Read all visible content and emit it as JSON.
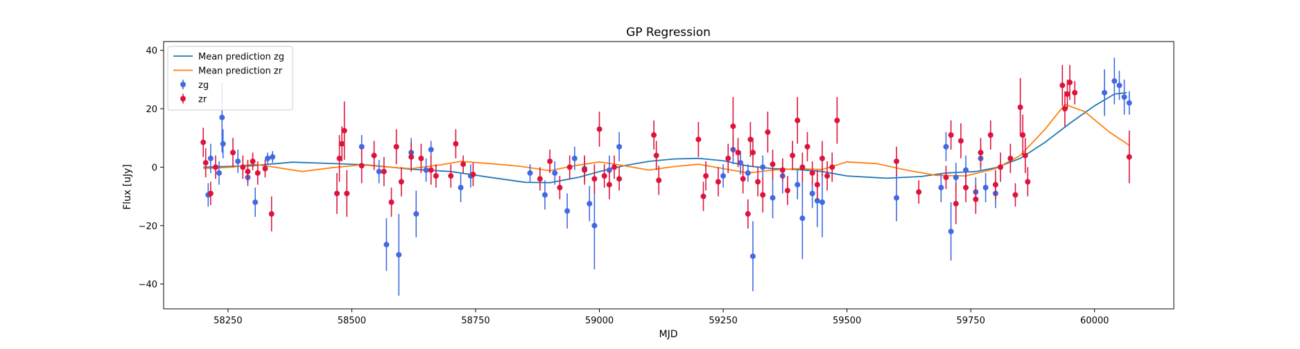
{
  "chart_data": {
    "type": "scatter",
    "title": "GP Regression",
    "xlabel": "MJD",
    "ylabel": "Flux [uJy]",
    "xlim": [
      58120,
      60160
    ],
    "ylim": [
      -48.5,
      43
    ],
    "x_ticks": [
      58250,
      58500,
      58750,
      59000,
      59250,
      59500,
      59750,
      60000
    ],
    "y_ticks": [
      -40,
      -20,
      0,
      20,
      40
    ],
    "legend": {
      "location": "top-left",
      "entries": [
        {
          "label": "Mean prediction zg",
          "kind": "line",
          "color": "#1f77b4"
        },
        {
          "label": "Mean prediction zr",
          "kind": "line",
          "color": "#ff7f0e"
        },
        {
          "label": "zg",
          "kind": "errorbar",
          "color": "#4169e1"
        },
        {
          "label": "zr",
          "kind": "errorbar",
          "color": "#dc143c"
        }
      ]
    },
    "series": [
      {
        "name": "Mean prediction zg",
        "kind": "line",
        "color": "#1f77b4",
        "points": [
          [
            58200,
            0
          ],
          [
            58300,
            0.5
          ],
          [
            58380,
            1.7
          ],
          [
            58450,
            1.3
          ],
          [
            58530,
            0.8
          ],
          [
            58620,
            -0.7
          ],
          [
            58700,
            -1.5
          ],
          [
            58780,
            -3.5
          ],
          [
            58850,
            -5.2
          ],
          [
            58900,
            -5.3
          ],
          [
            58960,
            -3.4
          ],
          [
            59000,
            -1.5
          ],
          [
            59050,
            0.5
          ],
          [
            59100,
            2
          ],
          [
            59150,
            2.8
          ],
          [
            59200,
            3
          ],
          [
            59250,
            2.2
          ],
          [
            59300,
            0.4
          ],
          [
            59350,
            -0.5
          ],
          [
            59400,
            -0.8
          ],
          [
            59450,
            -1.5
          ],
          [
            59500,
            -3
          ],
          [
            59580,
            -3.8
          ],
          [
            59650,
            -3.2
          ],
          [
            59700,
            -2
          ],
          [
            59760,
            -1.5
          ],
          [
            59800,
            -0.2
          ],
          [
            59850,
            3
          ],
          [
            59900,
            8.5
          ],
          [
            59950,
            15
          ],
          [
            60000,
            21
          ],
          [
            60040,
            25
          ],
          [
            60065,
            25.5
          ]
        ]
      },
      {
        "name": "Mean prediction zr",
        "kind": "line",
        "color": "#ff7f0e",
        "points": [
          [
            58200,
            -0.5
          ],
          [
            58260,
            0
          ],
          [
            58300,
            1
          ],
          [
            58340,
            0.1
          ],
          [
            58400,
            -1.5
          ],
          [
            58460,
            -0.2
          ],
          [
            58520,
            0.8
          ],
          [
            58560,
            0.2
          ],
          [
            58620,
            -0.5
          ],
          [
            58680,
            0.8
          ],
          [
            58720,
            2
          ],
          [
            58780,
            1.2
          ],
          [
            58840,
            0.3
          ],
          [
            58900,
            -1.2
          ],
          [
            58950,
            0.5
          ],
          [
            59000,
            1.8
          ],
          [
            59050,
            0.5
          ],
          [
            59100,
            -1
          ],
          [
            59150,
            0.2
          ],
          [
            59200,
            1
          ],
          [
            59250,
            -0.5
          ],
          [
            59300,
            -2
          ],
          [
            59350,
            -1
          ],
          [
            59400,
            -0.5
          ],
          [
            59450,
            -0.8
          ],
          [
            59500,
            1.8
          ],
          [
            59560,
            1.2
          ],
          [
            59620,
            -1
          ],
          [
            59680,
            -2.8
          ],
          [
            59740,
            -3
          ],
          [
            59800,
            -0.5
          ],
          [
            59850,
            4
          ],
          [
            59900,
            13
          ],
          [
            59940,
            21.5
          ],
          [
            59980,
            19
          ],
          [
            60030,
            12
          ],
          [
            60070,
            7.5
          ]
        ]
      },
      {
        "name": "zg",
        "kind": "errorbar",
        "color": "#4169e1",
        "points": [
          [
            58210,
            -9.5,
            4
          ],
          [
            58215,
            3,
            5
          ],
          [
            58232,
            -2,
            4
          ],
          [
            58238,
            17,
            12
          ],
          [
            58240,
            8,
            5
          ],
          [
            58270,
            2,
            4
          ],
          [
            58290,
            -3.5,
            3
          ],
          [
            58305,
            -12,
            5
          ],
          [
            58330,
            3,
            2
          ],
          [
            58340,
            3.5,
            2
          ],
          [
            58520,
            7,
            4
          ],
          [
            58555,
            -1.5,
            4
          ],
          [
            58570,
            -26.5,
            9
          ],
          [
            58595,
            -30,
            14
          ],
          [
            58620,
            5,
            5
          ],
          [
            58630,
            -16,
            8
          ],
          [
            58650,
            -1,
            4
          ],
          [
            58660,
            6,
            3
          ],
          [
            58720,
            -7,
            5
          ],
          [
            58740,
            -3,
            4
          ],
          [
            58860,
            -2,
            3
          ],
          [
            58890,
            -9.5,
            5
          ],
          [
            58910,
            -2,
            4
          ],
          [
            58935,
            -15,
            6
          ],
          [
            58950,
            3,
            4
          ],
          [
            58970,
            -0.5,
            4
          ],
          [
            58980,
            -12.5,
            6
          ],
          [
            58990,
            -20,
            15
          ],
          [
            59020,
            -1,
            5
          ],
          [
            59040,
            7,
            5
          ],
          [
            59250,
            -3,
            4
          ],
          [
            59270,
            6,
            5
          ],
          [
            59285,
            1.5,
            4
          ],
          [
            59300,
            -2,
            3
          ],
          [
            59310,
            -30.5,
            12
          ],
          [
            59330,
            0,
            4
          ],
          [
            59350,
            -10.5,
            7
          ],
          [
            59370,
            -3,
            6
          ],
          [
            59400,
            -6,
            5
          ],
          [
            59410,
            -17.5,
            14
          ],
          [
            59430,
            -9,
            5
          ],
          [
            59440,
            -11.5,
            9
          ],
          [
            59450,
            -12,
            12
          ],
          [
            59600,
            -10.5,
            8
          ],
          [
            59690,
            -7,
            5
          ],
          [
            59700,
            7,
            5
          ],
          [
            59710,
            -22,
            10
          ],
          [
            59720,
            -3.5,
            5
          ],
          [
            59740,
            -1,
            5
          ],
          [
            59760,
            -8.5,
            5
          ],
          [
            59770,
            3,
            4
          ],
          [
            59780,
            -7,
            5
          ],
          [
            59800,
            -9,
            5
          ],
          [
            60020,
            25.5,
            8
          ],
          [
            60040,
            29.5,
            8
          ],
          [
            60050,
            28,
            5
          ],
          [
            60060,
            24,
            6
          ],
          [
            60070,
            22,
            4
          ]
        ]
      },
      {
        "name": "zr",
        "kind": "errorbar",
        "color": "#dc143c",
        "points": [
          [
            58200,
            8.5,
            5
          ],
          [
            58205,
            1.5,
            5
          ],
          [
            58215,
            -9,
            4
          ],
          [
            58225,
            0,
            4
          ],
          [
            58260,
            5,
            5
          ],
          [
            58280,
            0,
            4
          ],
          [
            58290,
            -1.5,
            4
          ],
          [
            58300,
            2,
            3
          ],
          [
            58310,
            -2,
            4
          ],
          [
            58325,
            -0.5,
            3
          ],
          [
            58338,
            -16,
            6
          ],
          [
            58470,
            -9,
            7
          ],
          [
            58475,
            3,
            8
          ],
          [
            58480,
            8,
            6
          ],
          [
            58485,
            12.5,
            10
          ],
          [
            58490,
            -9,
            8
          ],
          [
            58520,
            0.5,
            6
          ],
          [
            58545,
            4,
            5
          ],
          [
            58565,
            -1.5,
            5
          ],
          [
            58580,
            -12,
            5
          ],
          [
            58590,
            7,
            6
          ],
          [
            58600,
            -5,
            5
          ],
          [
            58620,
            3.5,
            5
          ],
          [
            58640,
            3,
            5
          ],
          [
            58660,
            -1,
            5
          ],
          [
            58670,
            -3,
            4
          ],
          [
            58700,
            -3,
            4
          ],
          [
            58710,
            8,
            5
          ],
          [
            58725,
            1,
            3
          ],
          [
            58745,
            -2.5,
            4
          ],
          [
            58880,
            -4,
            4
          ],
          [
            58900,
            2,
            4
          ],
          [
            58920,
            -7,
            4
          ],
          [
            58940,
            0,
            4
          ],
          [
            58970,
            -1,
            5
          ],
          [
            58990,
            -4,
            5
          ],
          [
            59000,
            13,
            6
          ],
          [
            59010,
            -3,
            4
          ],
          [
            59020,
            -6,
            5
          ],
          [
            59030,
            0,
            4
          ],
          [
            59040,
            -4,
            4
          ],
          [
            59110,
            11,
            5
          ],
          [
            59115,
            4,
            5
          ],
          [
            59120,
            -4.5,
            5
          ],
          [
            59200,
            9.5,
            6
          ],
          [
            59210,
            -10,
            5
          ],
          [
            59215,
            -3,
            5
          ],
          [
            59240,
            -5,
            5
          ],
          [
            59260,
            3,
            5
          ],
          [
            59270,
            14,
            10
          ],
          [
            59280,
            5,
            5
          ],
          [
            59290,
            -4,
            5
          ],
          [
            59300,
            -16,
            5
          ],
          [
            59305,
            9.5,
            6
          ],
          [
            59310,
            5,
            5
          ],
          [
            59320,
            -5,
            5
          ],
          [
            59330,
            -9.5,
            6
          ],
          [
            59340,
            12,
            7
          ],
          [
            59350,
            1,
            5
          ],
          [
            59370,
            -1,
            4
          ],
          [
            59380,
            -8,
            5
          ],
          [
            59390,
            4,
            5
          ],
          [
            59400,
            16,
            8
          ],
          [
            59410,
            0,
            5
          ],
          [
            59420,
            7,
            5
          ],
          [
            59430,
            -2,
            4
          ],
          [
            59440,
            -6,
            5
          ],
          [
            59450,
            3,
            6
          ],
          [
            59460,
            -3,
            5
          ],
          [
            59470,
            0,
            5
          ],
          [
            59480,
            16,
            8
          ],
          [
            59600,
            2,
            5
          ],
          [
            59645,
            -8.5,
            4
          ],
          [
            59700,
            -3.5,
            4
          ],
          [
            59710,
            11,
            5
          ],
          [
            59720,
            -12.5,
            7
          ],
          [
            59730,
            9,
            6
          ],
          [
            59740,
            -7,
            5
          ],
          [
            59760,
            -11,
            5
          ],
          [
            59770,
            5,
            5
          ],
          [
            59790,
            11,
            5
          ],
          [
            59800,
            -6,
            5
          ],
          [
            59810,
            0,
            5
          ],
          [
            59830,
            3,
            5
          ],
          [
            59840,
            -9.5,
            4
          ],
          [
            59850,
            20.5,
            10
          ],
          [
            59855,
            11,
            7
          ],
          [
            59860,
            4,
            6
          ],
          [
            59865,
            -5,
            5
          ],
          [
            59935,
            28,
            7
          ],
          [
            59940,
            20,
            6
          ],
          [
            59945,
            25,
            5
          ],
          [
            59950,
            29,
            6
          ],
          [
            59960,
            25.5,
            4
          ],
          [
            60070,
            3.5,
            9
          ]
        ]
      }
    ]
  }
}
